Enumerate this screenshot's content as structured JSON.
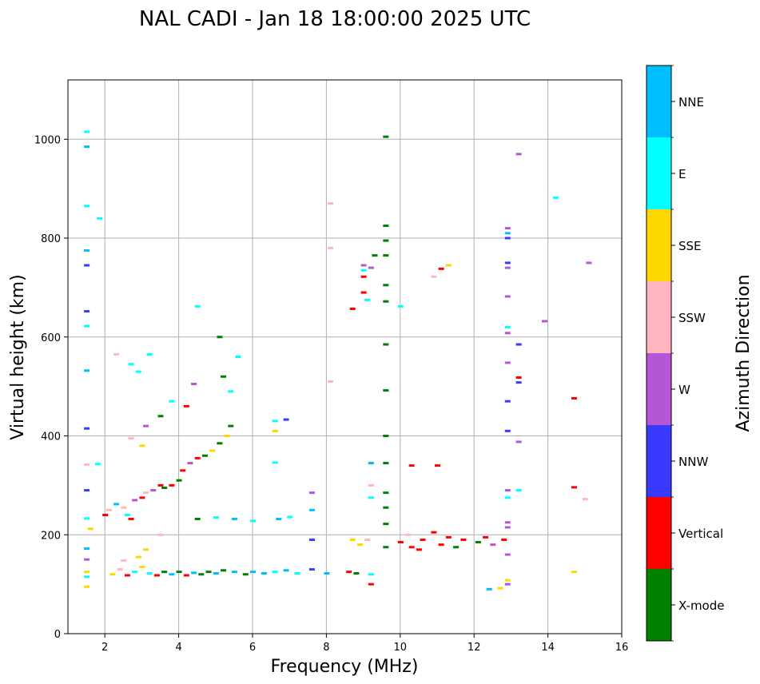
{
  "chart_data": {
    "type": "scatter",
    "title": "NAL CADI - Jan 18 18:00:00 2025 UTC",
    "xlabel": "Frequency (MHz)",
    "ylabel": "Virtual height (km)",
    "xlim": [
      1,
      16
    ],
    "ylim": [
      0,
      1120
    ],
    "xticks": [
      2,
      4,
      6,
      8,
      10,
      12,
      14,
      16
    ],
    "yticks": [
      0,
      200,
      400,
      600,
      800,
      1000
    ],
    "grid": true,
    "colorbar": {
      "title": "Azimuth Direction",
      "categories": [
        {
          "name": "X-mode",
          "color": "#008000"
        },
        {
          "name": "Vertical",
          "color": "#ff0000"
        },
        {
          "name": "NNW",
          "color": "#3a3aff"
        },
        {
          "name": "W",
          "color": "#b556d6"
        },
        {
          "name": "SSW",
          "color": "#ffb6c1"
        },
        {
          "name": "SSE",
          "color": "#ffd700"
        },
        {
          "name": "E",
          "color": "#00ffff"
        },
        {
          "name": "NNE",
          "color": "#00bfff"
        }
      ]
    },
    "points": [
      [
        1.5,
        1015,
        "E"
      ],
      [
        1.5,
        985,
        "NNE"
      ],
      [
        1.5,
        865,
        "E"
      ],
      [
        1.85,
        840,
        "E"
      ],
      [
        1.5,
        775,
        "NNE"
      ],
      [
        1.5,
        745,
        "NNW"
      ],
      [
        1.5,
        652,
        "NNW"
      ],
      [
        1.5,
        622,
        "E"
      ],
      [
        1.5,
        532,
        "NNE"
      ],
      [
        1.5,
        415,
        "NNW"
      ],
      [
        1.5,
        342,
        "SSW"
      ],
      [
        1.8,
        343,
        "E"
      ],
      [
        1.5,
        290,
        "NNW"
      ],
      [
        1.5,
        233,
        "E"
      ],
      [
        1.6,
        212,
        "SSE"
      ],
      [
        1.5,
        172,
        "NNE"
      ],
      [
        1.5,
        150,
        "W"
      ],
      [
        1.5,
        125,
        "SSE"
      ],
      [
        1.5,
        115,
        "E"
      ],
      [
        1.5,
        95,
        "SSE"
      ],
      [
        2.0,
        240,
        "Vertical"
      ],
      [
        2.1,
        250,
        "SSW"
      ],
      [
        2.3,
        262,
        "NNE"
      ],
      [
        2.5,
        255,
        "SSW"
      ],
      [
        2.6,
        240,
        "E"
      ],
      [
        2.7,
        232,
        "Vertical"
      ],
      [
        2.8,
        270,
        "W"
      ],
      [
        3.0,
        275,
        "Vertical"
      ],
      [
        3.1,
        285,
        "SSW"
      ],
      [
        3.3,
        290,
        "W"
      ],
      [
        3.5,
        300,
        "Vertical"
      ],
      [
        3.6,
        295,
        "X-mode"
      ],
      [
        3.8,
        300,
        "Vertical"
      ],
      [
        4.0,
        310,
        "X-mode"
      ],
      [
        4.1,
        330,
        "Vertical"
      ],
      [
        4.3,
        345,
        "W"
      ],
      [
        4.5,
        355,
        "Vertical"
      ],
      [
        4.7,
        360,
        "X-mode"
      ],
      [
        4.9,
        370,
        "SSE"
      ],
      [
        5.1,
        385,
        "X-mode"
      ],
      [
        5.3,
        400,
        "SSE"
      ],
      [
        5.4,
        420,
        "X-mode"
      ],
      [
        3.2,
        565,
        "E"
      ],
      [
        2.7,
        545,
        "E"
      ],
      [
        2.9,
        530,
        "E"
      ],
      [
        4.5,
        662,
        "E"
      ],
      [
        5.1,
        600,
        "X-mode"
      ],
      [
        5.6,
        560,
        "E"
      ],
      [
        5.2,
        520,
        "X-mode"
      ],
      [
        4.2,
        460,
        "Vertical"
      ],
      [
        3.8,
        470,
        "E"
      ],
      [
        2.3,
        565,
        "SSW"
      ],
      [
        3.1,
        420,
        "W"
      ],
      [
        3.5,
        440,
        "X-mode"
      ],
      [
        3.0,
        380,
        "SSE"
      ],
      [
        2.7,
        395,
        "SSW"
      ],
      [
        4.4,
        505,
        "W"
      ],
      [
        5.4,
        490,
        "E"
      ],
      [
        6.6,
        430,
        "E"
      ],
      [
        6.9,
        433,
        "NNW"
      ],
      [
        6.6,
        410,
        "SSE"
      ],
      [
        6.6,
        346,
        "E"
      ],
      [
        2.2,
        120,
        "SSE"
      ],
      [
        2.4,
        130,
        "SSW"
      ],
      [
        2.6,
        118,
        "Vertical"
      ],
      [
        2.8,
        125,
        "E"
      ],
      [
        3.0,
        135,
        "SSE"
      ],
      [
        3.2,
        122,
        "E"
      ],
      [
        3.4,
        118,
        "Vertical"
      ],
      [
        3.6,
        125,
        "X-mode"
      ],
      [
        3.8,
        120,
        "NNE"
      ],
      [
        4.0,
        125,
        "X-mode"
      ],
      [
        4.2,
        118,
        "Vertical"
      ],
      [
        4.4,
        123,
        "NNE"
      ],
      [
        4.6,
        120,
        "X-mode"
      ],
      [
        4.8,
        125,
        "X-mode"
      ],
      [
        5.0,
        122,
        "NNE"
      ],
      [
        5.2,
        128,
        "X-mode"
      ],
      [
        5.5,
        125,
        "NNE"
      ],
      [
        5.8,
        120,
        "X-mode"
      ],
      [
        6.0,
        125,
        "NNE"
      ],
      [
        6.3,
        122,
        "NNE"
      ],
      [
        6.6,
        125,
        "E"
      ],
      [
        6.9,
        128,
        "NNE"
      ],
      [
        7.2,
        122,
        "E"
      ],
      [
        7.6,
        130,
        "NNW"
      ],
      [
        8.0,
        122,
        "NNE"
      ],
      [
        8.6,
        125,
        "Vertical"
      ],
      [
        8.8,
        122,
        "X-mode"
      ],
      [
        2.9,
        155,
        "SSE"
      ],
      [
        3.1,
        170,
        "SSE"
      ],
      [
        2.5,
        148,
        "SSW"
      ],
      [
        3.5,
        200,
        "SSW"
      ],
      [
        4.5,
        232,
        "X-mode"
      ],
      [
        5.0,
        235,
        "E"
      ],
      [
        5.5,
        232,
        "NNE"
      ],
      [
        6.0,
        228,
        "E"
      ],
      [
        6.7,
        232,
        "NNE"
      ],
      [
        7.0,
        236,
        "E"
      ],
      [
        7.6,
        250,
        "NNE"
      ],
      [
        7.6,
        285,
        "W"
      ],
      [
        7.6,
        190,
        "NNW"
      ],
      [
        9.2,
        300,
        "SSW"
      ],
      [
        9.2,
        275,
        "E"
      ],
      [
        9.2,
        345,
        "NNE"
      ],
      [
        9.2,
        120,
        "E"
      ],
      [
        9.2,
        100,
        "Vertical"
      ],
      [
        8.9,
        180,
        "SSE"
      ],
      [
        8.7,
        190,
        "SSE"
      ],
      [
        9.1,
        190,
        "SSW"
      ],
      [
        9.6,
        175,
        "X-mode"
      ],
      [
        10.0,
        185,
        "Vertical"
      ],
      [
        10.3,
        175,
        "Vertical"
      ],
      [
        10.6,
        190,
        "Vertical"
      ],
      [
        10.9,
        205,
        "Vertical"
      ],
      [
        11.1,
        180,
        "Vertical"
      ],
      [
        11.3,
        195,
        "Vertical"
      ],
      [
        11.5,
        175,
        "X-mode"
      ],
      [
        11.7,
        190,
        "Vertical"
      ],
      [
        12.1,
        185,
        "X-mode"
      ],
      [
        12.3,
        195,
        "Vertical"
      ],
      [
        12.5,
        180,
        "W"
      ],
      [
        12.8,
        190,
        "Vertical"
      ],
      [
        10.2,
        200,
        "SSW"
      ],
      [
        10.5,
        170,
        "Vertical"
      ],
      [
        9.6,
        1005,
        "X-mode"
      ],
      [
        9.6,
        825,
        "X-mode"
      ],
      [
        9.6,
        795,
        "X-mode"
      ],
      [
        9.6,
        765,
        "X-mode"
      ],
      [
        9.6,
        705,
        "X-mode"
      ],
      [
        9.6,
        672,
        "X-mode"
      ],
      [
        9.6,
        585,
        "X-mode"
      ],
      [
        9.6,
        492,
        "X-mode"
      ],
      [
        9.6,
        400,
        "X-mode"
      ],
      [
        9.6,
        345,
        "X-mode"
      ],
      [
        9.6,
        285,
        "X-mode"
      ],
      [
        9.6,
        255,
        "X-mode"
      ],
      [
        9.6,
        222,
        "X-mode"
      ],
      [
        9.3,
        765,
        "X-mode"
      ],
      [
        9.0,
        745,
        "W"
      ],
      [
        9.0,
        735,
        "E"
      ],
      [
        9.0,
        722,
        "Vertical"
      ],
      [
        9.0,
        690,
        "Vertical"
      ],
      [
        8.7,
        657,
        "Vertical"
      ],
      [
        9.1,
        675,
        "E"
      ],
      [
        9.2,
        740,
        "W"
      ],
      [
        8.1,
        870,
        "SSW"
      ],
      [
        8.1,
        780,
        "SSW"
      ],
      [
        8.1,
        510,
        "SSW"
      ],
      [
        10.0,
        662,
        "E"
      ],
      [
        10.9,
        722,
        "SSW"
      ],
      [
        11.1,
        738,
        "Vertical"
      ],
      [
        11.3,
        745,
        "SSE"
      ],
      [
        10.3,
        340,
        "Vertical"
      ],
      [
        11.0,
        340,
        "Vertical"
      ],
      [
        12.9,
        820,
        "W"
      ],
      [
        12.9,
        810,
        "NNE"
      ],
      [
        12.9,
        800,
        "NNW"
      ],
      [
        12.9,
        750,
        "NNW"
      ],
      [
        12.9,
        740,
        "W"
      ],
      [
        12.9,
        682,
        "W"
      ],
      [
        12.9,
        620,
        "E"
      ],
      [
        12.9,
        608,
        "W"
      ],
      [
        12.9,
        548,
        "W"
      ],
      [
        12.9,
        470,
        "NNW"
      ],
      [
        12.9,
        410,
        "NNW"
      ],
      [
        12.9,
        290,
        "W"
      ],
      [
        12.9,
        275,
        "E"
      ],
      [
        12.9,
        225,
        "W"
      ],
      [
        12.9,
        215,
        "W"
      ],
      [
        12.9,
        160,
        "W"
      ],
      [
        12.9,
        108,
        "SSE"
      ],
      [
        12.9,
        100,
        "W"
      ],
      [
        12.4,
        90,
        "NNE"
      ],
      [
        12.7,
        92,
        "SSE"
      ],
      [
        13.2,
        970,
        "W"
      ],
      [
        13.2,
        585,
        "NNW"
      ],
      [
        13.2,
        518,
        "Vertical"
      ],
      [
        13.2,
        508,
        "NNW"
      ],
      [
        13.2,
        388,
        "W"
      ],
      [
        13.2,
        290,
        "E"
      ],
      [
        13.9,
        632,
        "W"
      ],
      [
        14.2,
        882,
        "E"
      ],
      [
        14.7,
        476,
        "Vertical"
      ],
      [
        14.7,
        296,
        "Vertical"
      ],
      [
        15.0,
        272,
        "SSW"
      ],
      [
        15.1,
        750,
        "W"
      ],
      [
        14.7,
        125,
        "SSE"
      ]
    ]
  }
}
